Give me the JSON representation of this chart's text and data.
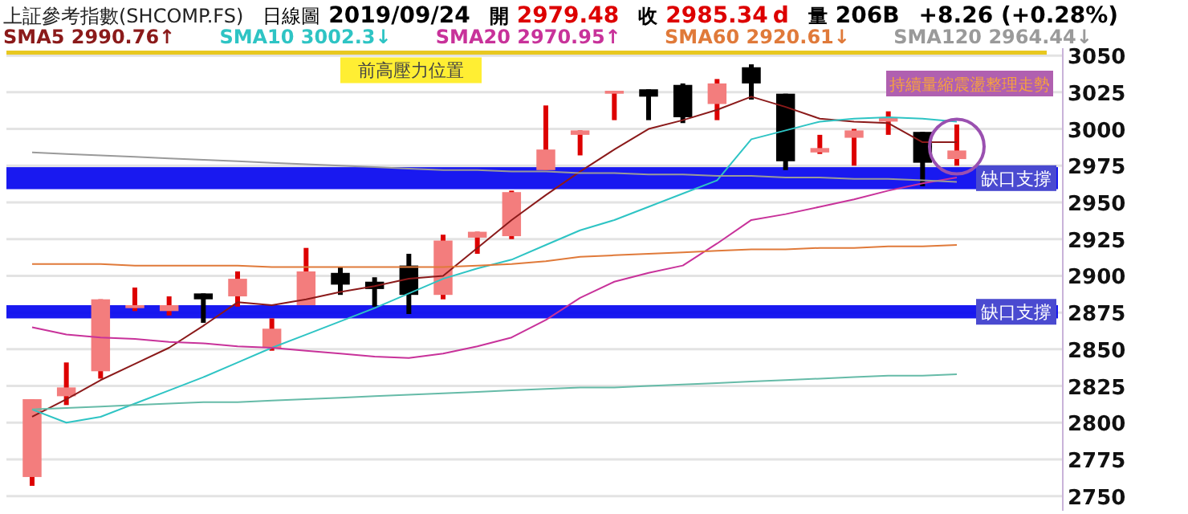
{
  "chart_data": {
    "type": "candlestick",
    "title": "上証參考指數(SHCOMP.FS)",
    "annotations": [
      "日線圖",
      "2019/09/24",
      "開",
      "2979.48",
      "收",
      "2985.34",
      "d",
      "量",
      "206B",
      "+8.26 (+0.28%)",
      "持續量縮震盪整理走勢"
    ],
    "categories": [
      null,
      null,
      null,
      null,
      null,
      null,
      null,
      null,
      null,
      null,
      null,
      null,
      null,
      null,
      null,
      null,
      null,
      null,
      null,
      null,
      null,
      null,
      null,
      null,
      null,
      null,
      null,
      null
    ],
    "ohlc": [
      [
        2763,
        2816,
        2757,
        2816
      ],
      [
        2818,
        2841,
        2812,
        2824
      ],
      [
        2835,
        2884,
        2830,
        2884
      ],
      [
        2878,
        2892,
        2876,
        2880
      ],
      [
        2876,
        2886,
        2873,
        2880
      ],
      [
        2888,
        2888,
        2868,
        2884
      ],
      [
        2886,
        2903,
        2879,
        2898
      ],
      [
        2851,
        2871,
        2849,
        2864
      ],
      [
        2880,
        2919,
        2880,
        2903
      ],
      [
        2902,
        2906,
        2887,
        2894
      ],
      [
        2896,
        2899,
        2879,
        2891
      ],
      [
        2907,
        2915,
        2874,
        2887
      ],
      [
        2887,
        2928,
        2884,
        2924
      ],
      [
        2926,
        2930,
        2915,
        2930
      ],
      [
        2927,
        2958,
        2925,
        2957
      ],
      [
        2972,
        3016,
        2972,
        2986
      ],
      [
        2996,
        2999,
        2982,
        2999
      ],
      [
        3024,
        3026,
        3006,
        3026
      ],
      [
        3027,
        3027,
        3006,
        3022
      ],
      [
        3030,
        3031,
        3004,
        3008
      ],
      [
        3017,
        3034,
        3006,
        3031
      ],
      [
        3042,
        3044,
        3020,
        3031
      ],
      [
        3024,
        3024,
        2972,
        2978
      ],
      [
        2984,
        2996,
        2983,
        2987
      ],
      [
        2994,
        3000,
        2975,
        2999
      ],
      [
        3005,
        3012,
        2996,
        3008
      ],
      [
        2998,
        2998,
        2961,
        2977
      ],
      [
        2979.48,
        3003,
        2975,
        2985.34
      ]
    ],
    "series": [
      {
        "type": "line",
        "name": "SMA5 2990.76↑",
        "color": "#8b1a1a",
        "values": [
          2804,
          2816,
          2829,
          2840,
          2851,
          2866,
          2882,
          2880,
          2884,
          2889,
          2893,
          2898,
          2900,
          2919,
          2938,
          2955,
          2971,
          2986,
          3000,
          3006,
          3013,
          3022,
          3015,
          3007,
          3005,
          3004,
          2991,
          2991
        ]
      },
      {
        "type": "line",
        "name": "SMA10 3002.3↓",
        "color": "#2ec4c4",
        "values": [
          2809,
          2800,
          2804,
          2813,
          2822,
          2831,
          2841,
          2851,
          2860,
          2869,
          2878,
          2888,
          2898,
          2905,
          2911,
          2921,
          2931,
          2938,
          2947,
          2956,
          2965,
          2993,
          2999,
          3005,
          3007,
          3008,
          3007,
          3005
        ]
      },
      {
        "type": "line",
        "name": "SMA20 2970.95↑",
        "color": "#c8329a",
        "values": [
          2865,
          2860,
          2858,
          2857,
          2855,
          2854,
          2852,
          2851,
          2849,
          2847,
          2845,
          2844,
          2847,
          2852,
          2858,
          2870,
          2885,
          2896,
          2902,
          2907,
          2922,
          2938,
          2942,
          2947,
          2952,
          2958,
          2963,
          2967
        ]
      },
      {
        "type": "line",
        "name": "SMA60 2920.61↓",
        "color": "#e07a3a",
        "values": [
          2908,
          2908,
          2908,
          2907,
          2907,
          2907,
          2907,
          2906,
          2906,
          2906,
          2906,
          2906,
          2906,
          2907,
          2908,
          2910,
          2913,
          2914,
          2915,
          2916,
          2917,
          2918,
          2918,
          2919,
          2919,
          2920,
          2920,
          2921
        ]
      },
      {
        "type": "line",
        "name": "SMA120 2964.44↓",
        "color": "#9a9a9a",
        "values": [
          2984,
          2983,
          2982,
          2981,
          2980,
          2979,
          2978,
          2977,
          2976,
          2975,
          2974,
          2973,
          2972,
          2972,
          2971,
          2971,
          2970,
          2970,
          2969,
          2969,
          2968,
          2968,
          2967,
          2967,
          2966,
          2966,
          2965,
          2964
        ]
      },
      {
        "type": "line",
        "color": "#66bba8",
        "values": [
          2809,
          2810,
          2811,
          2812,
          2813,
          2814,
          2814,
          2815,
          2816,
          2817,
          2818,
          2819,
          2820,
          2821,
          2822,
          2823,
          2824,
          2824,
          2825,
          2826,
          2827,
          2828,
          2829,
          2830,
          2831,
          2832,
          2832,
          2833
        ]
      }
    ],
    "ylim": [
      2740,
      3055
    ],
    "yticks": [
      2750,
      2775,
      2800,
      2825,
      2850,
      2875,
      2900,
      2925,
      2950,
      2975,
      3000,
      3025,
      3050
    ],
    "grid": "y",
    "legend": "top",
    "ref_lines": [
      {
        "axis": "y",
        "value": 3052,
        "label": "前高壓力位置",
        "color": "#e8c820"
      }
    ],
    "bands": [
      {
        "axis": "y",
        "from": 2959,
        "to": 2974,
        "label": "缺口支撐",
        "color": "#0000ee"
      },
      {
        "axis": "y",
        "from": 2871,
        "to": 2880,
        "label": "缺口支撐",
        "color": "#0000ee"
      }
    ]
  }
}
